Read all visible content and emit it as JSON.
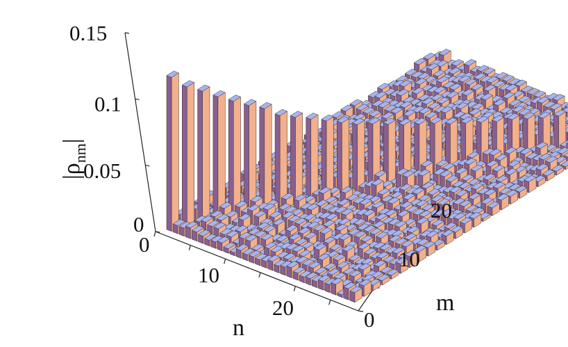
{
  "chart_data": {
    "type": "bar3d",
    "title": "",
    "xlabel": "n",
    "ylabel": "m",
    "zlabel": "|ρ",
    "zlabel_subscript": "nm",
    "zlabel_close": "|",
    "z_ticks": [
      "0",
      "0.05",
      "0.1",
      "0.15"
    ],
    "n_ticks": [
      "0",
      "10",
      "20"
    ],
    "m_ticks": [
      "0",
      "10",
      "20"
    ],
    "zlim": [
      0,
      0.15
    ],
    "n_range": [
      0,
      29
    ],
    "m_range": [
      0,
      29
    ],
    "grid": false,
    "description_of_values": "Diagonal elements |rho_nn| decrease from about 0.12 at n=0 toward about 0.02 at n=29; off-diagonal elements are small (about 0.002-0.01).",
    "diagonal_values": [
      0.12,
      0.11,
      0.104,
      0.097,
      0.091,
      0.085,
      0.08,
      0.072,
      0.068,
      0.064,
      0.06,
      0.056,
      0.052,
      0.05,
      0.047,
      0.044,
      0.042,
      0.04,
      0.037,
      0.035,
      0.033,
      0.031,
      0.03,
      0.028,
      0.026,
      0.025,
      0.023,
      0.022,
      0.021,
      0.02
    ],
    "off_diagonal_typical_range": [
      0.002,
      0.012
    ],
    "colors": {
      "top": "#a9b3ec",
      "face_dark": "#8a5f8e",
      "face_light": "#f2b08c",
      "edge": "#333333",
      "axis": "#222222"
    }
  }
}
